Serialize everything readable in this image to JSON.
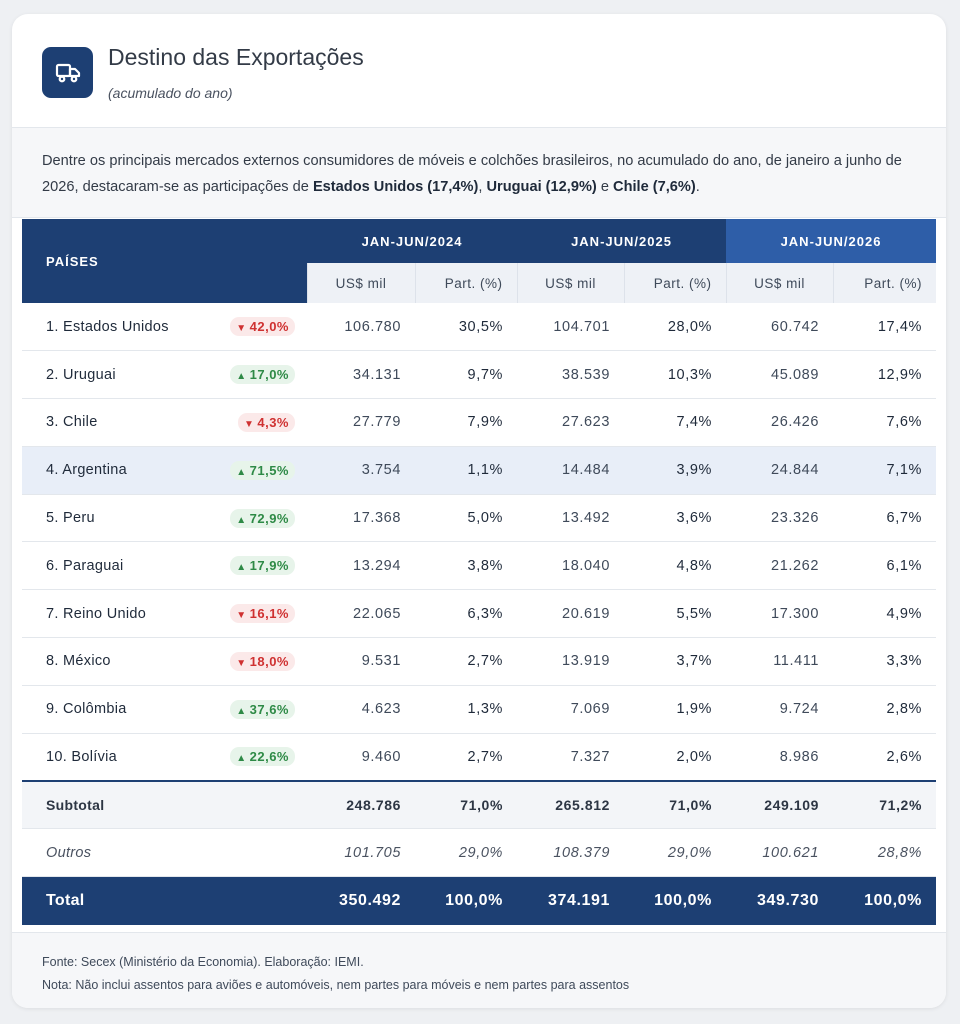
{
  "header": {
    "title": "Destino das Exportações",
    "subtitle": "(acumulado do ano)",
    "icon": "truck-icon"
  },
  "intro": {
    "text_1": "Dentre os principais mercados externos consumidores de móveis e colchões brasileiros, no acumulado do ano, de janeiro a junho de 2026, destacaram-se as participações de ",
    "highlight_1": "Estados Unidos (17,4%)",
    "sep_1": ", ",
    "highlight_2": "Uruguai (12,9%)",
    "sep_2": " e ",
    "highlight_3": "Chile (7,6%)",
    "end": "."
  },
  "table": {
    "col_paises": "PAÍSES",
    "periods": [
      "JAN-JUN/2024",
      "JAN-JUN/2025",
      "JAN-JUN/2026"
    ],
    "sub_value": "US$ mil",
    "sub_part": "Part. (%)",
    "rows": [
      {
        "name": "1. Estados Unidos",
        "trend": "down",
        "trend_arrow": "▼",
        "change": "42,0%",
        "v2024": "106.780",
        "p2024": "30,5%",
        "v2025": "104.701",
        "p2025": "28,0%",
        "v2026": "60.742",
        "p2026": "17,4%"
      },
      {
        "name": "2. Uruguai",
        "trend": "up",
        "trend_arrow": "▲",
        "change": "17,0%",
        "v2024": "34.131",
        "p2024": "9,7%",
        "v2025": "38.539",
        "p2025": "10,3%",
        "v2026": "45.089",
        "p2026": "12,9%"
      },
      {
        "name": "3. Chile",
        "trend": "down",
        "trend_arrow": "▼",
        "change": "4,3%",
        "v2024": "27.779",
        "p2024": "7,9%",
        "v2025": "27.623",
        "p2025": "7,4%",
        "v2026": "26.426",
        "p2026": "7,6%"
      },
      {
        "name": "4. Argentina",
        "trend": "up",
        "trend_arrow": "▲",
        "change": "71,5%",
        "v2024": "3.754",
        "p2024": "1,1%",
        "v2025": "14.484",
        "p2025": "3,9%",
        "v2026": "24.844",
        "p2026": "7,1%"
      },
      {
        "name": "5. Peru",
        "trend": "up",
        "trend_arrow": "▲",
        "change": "72,9%",
        "v2024": "17.368",
        "p2024": "5,0%",
        "v2025": "13.492",
        "p2025": "3,6%",
        "v2026": "23.326",
        "p2026": "6,7%"
      },
      {
        "name": "6. Paraguai",
        "trend": "up",
        "trend_arrow": "▲",
        "change": "17,9%",
        "v2024": "13.294",
        "p2024": "3,8%",
        "v2025": "18.040",
        "p2025": "4,8%",
        "v2026": "21.262",
        "p2026": "6,1%"
      },
      {
        "name": "7. Reino Unido",
        "trend": "down",
        "trend_arrow": "▼",
        "change": "16,1%",
        "v2024": "22.065",
        "p2024": "6,3%",
        "v2025": "20.619",
        "p2025": "5,5%",
        "v2026": "17.300",
        "p2026": "4,9%"
      },
      {
        "name": "8. México",
        "trend": "down",
        "trend_arrow": "▼",
        "change": "18,0%",
        "v2024": "9.531",
        "p2024": "2,7%",
        "v2025": "13.919",
        "p2025": "3,7%",
        "v2026": "11.411",
        "p2026": "3,3%"
      },
      {
        "name": "9. Colômbia",
        "trend": "up",
        "trend_arrow": "▲",
        "change": "37,6%",
        "v2024": "4.623",
        "p2024": "1,3%",
        "v2025": "7.069",
        "p2025": "1,9%",
        "v2026": "9.724",
        "p2026": "2,8%"
      },
      {
        "name": "10. Bolívia",
        "trend": "up",
        "trend_arrow": "▲",
        "change": "22,6%",
        "v2024": "9.460",
        "p2024": "2,7%",
        "v2025": "7.327",
        "p2025": "2,0%",
        "v2026": "8.986",
        "p2026": "2,6%"
      }
    ],
    "highlighted_row": 3,
    "subtotal": {
      "label": "Subtotal",
      "v2024": "248.786",
      "p2024": "71,0%",
      "v2025": "265.812",
      "p2025": "71,0%",
      "v2026": "249.109",
      "p2026": "71,2%"
    },
    "outros": {
      "label": "Outros",
      "v2024": "101.705",
      "p2024": "29,0%",
      "v2025": "108.379",
      "p2025": "29,0%",
      "v2026": "100.621",
      "p2026": "28,8%"
    },
    "total": {
      "label": "Total",
      "v2024": "350.492",
      "p2024": "100,0%",
      "v2025": "374.191",
      "p2025": "100,0%",
      "v2026": "349.730",
      "p2026": "100,0%"
    }
  },
  "footer": {
    "source": "Fonte: Secex (Ministério da Economia). Elaboração: IEMI.",
    "note": "Nota: Não inclui assentos para aviões e automóveis, nem partes para móveis e nem partes para assentos"
  },
  "colors": {
    "primary": "#1d3f73",
    "accent_2026": "#2e5ea8",
    "down": "#cf3131",
    "up": "#2e8a46"
  }
}
